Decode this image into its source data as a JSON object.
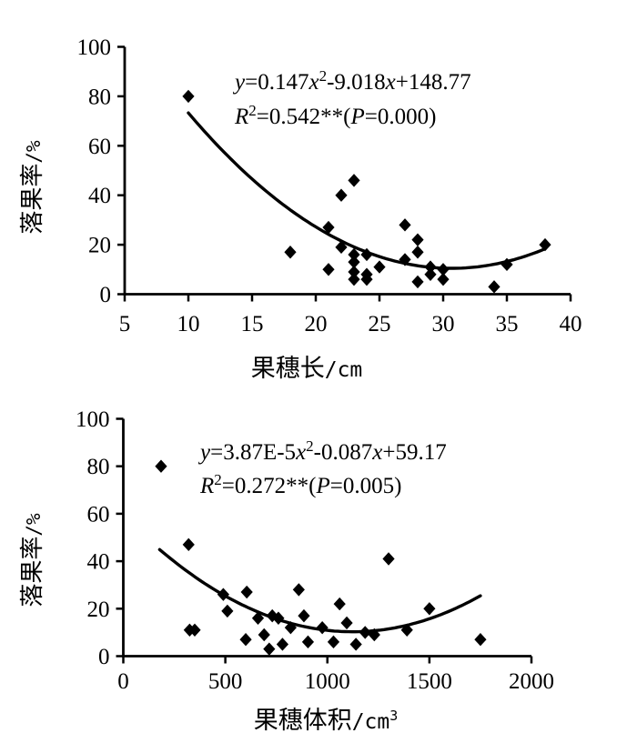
{
  "colors": {
    "background": "#ffffff",
    "axis": "#000000",
    "marker": "#000000",
    "curve": "#000000",
    "text": "#000000"
  },
  "chart_data": [
    {
      "type": "scatter",
      "title": "",
      "xlabel": {
        "main": "果穗长",
        "unit": "/cm",
        "unit_sup": ""
      },
      "ylabel": {
        "main": "落果率",
        "unit": "/%"
      },
      "xlim": [
        5,
        40
      ],
      "ylim": [
        0,
        100
      ],
      "x_ticks": [
        5,
        10,
        15,
        20,
        25,
        30,
        35,
        40
      ],
      "y_ticks": [
        0,
        20,
        40,
        60,
        80,
        100
      ],
      "grid": false,
      "legend": "none",
      "equation_text": "y=0.147x²-9.018x+148.77",
      "r2_text": "R²=0.542**(P=0.000)",
      "annotation_line1": [
        {
          "t": "y",
          "i": 1
        },
        {
          "t": "=0.147"
        },
        {
          "t": "x",
          "i": 1
        },
        {
          "t": "2",
          "s": 1
        },
        {
          "t": "-9.018"
        },
        {
          "t": "x",
          "i": 1
        },
        {
          "t": "+148.77"
        }
      ],
      "annotation_line2": [
        {
          "t": "R",
          "i": 1
        },
        {
          "t": "2",
          "s": 1
        },
        {
          "t": "=0.542**("
        },
        {
          "t": "P",
          "i": 1
        },
        {
          "t": "=0.000)"
        }
      ],
      "trend": {
        "type": "quadratic",
        "a": 0.147,
        "b": -9.018,
        "c": 148.77,
        "x_start": 10,
        "x_end": 38
      },
      "points": [
        [
          10,
          80
        ],
        [
          18,
          17
        ],
        [
          21,
          27
        ],
        [
          21,
          10
        ],
        [
          22,
          40
        ],
        [
          22,
          19
        ],
        [
          23,
          46
        ],
        [
          23,
          16
        ],
        [
          23,
          13
        ],
        [
          23,
          9
        ],
        [
          23,
          6
        ],
        [
          24,
          16
        ],
        [
          24,
          8
        ],
        [
          24,
          6
        ],
        [
          25,
          11
        ],
        [
          27,
          28
        ],
        [
          27,
          14
        ],
        [
          28,
          22
        ],
        [
          28,
          17
        ],
        [
          28,
          5
        ],
        [
          29,
          11
        ],
        [
          29,
          8
        ],
        [
          30,
          10
        ],
        [
          30,
          6
        ],
        [
          34,
          3
        ],
        [
          35,
          12
        ],
        [
          38,
          20
        ]
      ]
    },
    {
      "type": "scatter",
      "title": "",
      "xlabel": {
        "main": "果穗体积",
        "unit": "/cm",
        "unit_sup": "3"
      },
      "ylabel": {
        "main": "落果率",
        "unit": "/%"
      },
      "xlim": [
        0,
        2000
      ],
      "ylim": [
        0,
        100
      ],
      "x_ticks": [
        0,
        500,
        1000,
        1500,
        2000
      ],
      "y_ticks": [
        0,
        20,
        40,
        60,
        80,
        100
      ],
      "grid": false,
      "legend": "none",
      "equation_text": "y=3.87E-5x²-0.087x+59.17",
      "r2_text": "R²=0.272**(P=0.005)",
      "annotation_line1": [
        {
          "t": "y",
          "i": 1
        },
        {
          "t": "=3.87E-5"
        },
        {
          "t": "x",
          "i": 1
        },
        {
          "t": "2",
          "s": 1
        },
        {
          "t": "-0.087"
        },
        {
          "t": "x",
          "i": 1
        },
        {
          "t": "+59.17"
        }
      ],
      "annotation_line2": [
        {
          "t": "R",
          "i": 1
        },
        {
          "t": "2",
          "s": 1
        },
        {
          "t": "=0.272**("
        },
        {
          "t": "P",
          "i": 1
        },
        {
          "t": "=0.005)"
        }
      ],
      "trend": {
        "type": "quadratic",
        "a": 3.87e-05,
        "b": -0.087,
        "c": 59.17,
        "x_start": 178,
        "x_end": 1750
      },
      "points": [
        [
          185,
          80
        ],
        [
          320,
          47
        ],
        [
          325,
          11
        ],
        [
          350,
          11
        ],
        [
          490,
          26
        ],
        [
          510,
          19
        ],
        [
          600,
          7
        ],
        [
          605,
          27
        ],
        [
          660,
          16
        ],
        [
          690,
          9
        ],
        [
          715,
          3
        ],
        [
          730,
          17
        ],
        [
          760,
          16
        ],
        [
          780,
          5
        ],
        [
          820,
          12
        ],
        [
          860,
          28
        ],
        [
          885,
          17
        ],
        [
          905,
          6
        ],
        [
          975,
          12
        ],
        [
          1030,
          6
        ],
        [
          1060,
          22
        ],
        [
          1095,
          14
        ],
        [
          1140,
          5
        ],
        [
          1185,
          10
        ],
        [
          1230,
          9
        ],
        [
          1300,
          41
        ],
        [
          1390,
          11
        ],
        [
          1500,
          20
        ],
        [
          1750,
          7
        ]
      ]
    }
  ]
}
